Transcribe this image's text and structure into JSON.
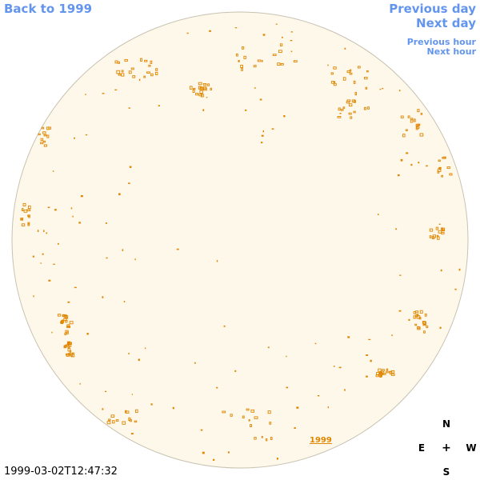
{
  "nav": {
    "back_label": "Back to 1999",
    "prev_day_label": "Previous day",
    "next_day_label": "Next day",
    "prev_hour_label": "Previous hour",
    "next_hour_label": "Next hour"
  },
  "timestamp": "1999-03-02T12:47:32",
  "compass": {
    "north": "N",
    "south": "S",
    "east": "E",
    "west": "W",
    "center": "+"
  },
  "disk": {
    "fill_color": "#fdf8e9",
    "outline_color": "#c9c2b2",
    "region_color": "#e08600",
    "year_label": "1999"
  }
}
